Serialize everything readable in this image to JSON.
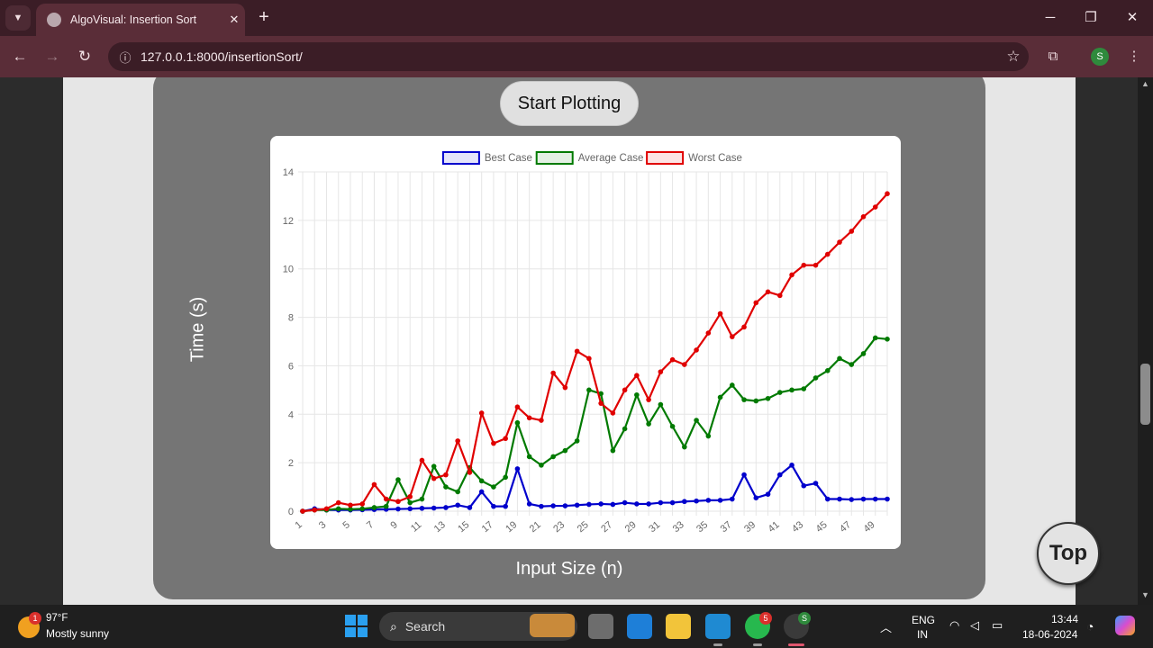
{
  "browser": {
    "tab_title": "AlgoVisual: Insertion Sort",
    "url": "127.0.0.1:8000/insertionSort/",
    "profile_initial": "S"
  },
  "page": {
    "start_button": "Start Plotting",
    "y_axis_title": "Time (s)",
    "x_axis_title": "Input Size (n)",
    "top_button": "Top"
  },
  "chart_data": {
    "type": "line",
    "x": [
      1,
      2,
      3,
      4,
      5,
      6,
      7,
      8,
      9,
      10,
      11,
      12,
      13,
      14,
      15,
      16,
      17,
      18,
      19,
      20,
      21,
      22,
      23,
      24,
      25,
      26,
      27,
      28,
      29,
      30,
      31,
      32,
      33,
      34,
      35,
      36,
      37,
      38,
      39,
      40,
      41,
      42,
      43,
      44,
      45,
      46,
      47,
      48,
      49,
      50
    ],
    "x_tick_labels": [
      "1",
      "3",
      "5",
      "7",
      "9",
      "11",
      "13",
      "15",
      "17",
      "19",
      "21",
      "23",
      "25",
      "27",
      "29",
      "31",
      "33",
      "35",
      "37",
      "39",
      "41",
      "43",
      "45",
      "47",
      "49"
    ],
    "y_ticks": [
      0,
      2,
      4,
      6,
      8,
      10,
      12,
      14
    ],
    "ylim": [
      0,
      14
    ],
    "grid": true,
    "legend_position": "top",
    "series": [
      {
        "name": "Best Case",
        "color": "#0000cc",
        "values": [
          0,
          0.1,
          0.05,
          0.05,
          0.05,
          0.06,
          0.07,
          0.08,
          0.09,
          0.1,
          0.12,
          0.13,
          0.15,
          0.25,
          0.15,
          0.8,
          0.2,
          0.2,
          1.75,
          0.3,
          0.2,
          0.22,
          0.22,
          0.25,
          0.28,
          0.3,
          0.28,
          0.35,
          0.3,
          0.3,
          0.35,
          0.35,
          0.4,
          0.42,
          0.45,
          0.45,
          0.5,
          1.5,
          0.55,
          0.7,
          1.5,
          1.9,
          1.05,
          1.15,
          0.5,
          0.5,
          0.48,
          0.5,
          0.5,
          0.5
        ]
      },
      {
        "name": "Average Case",
        "color": "#007a00",
        "values": [
          0,
          0.05,
          0.05,
          0.1,
          0.08,
          0.1,
          0.15,
          0.2,
          1.3,
          0.35,
          0.5,
          1.85,
          1.0,
          0.8,
          1.8,
          1.25,
          1.0,
          1.4,
          3.65,
          2.25,
          1.9,
          2.25,
          2.5,
          2.9,
          5.0,
          4.85,
          2.5,
          3.4,
          4.8,
          3.6,
          4.4,
          3.5,
          2.65,
          3.75,
          3.1,
          4.7,
          5.2,
          4.6,
          4.55,
          4.65,
          4.9,
          5.0,
          5.05,
          5.5,
          5.8,
          6.3,
          6.05,
          6.5,
          7.15,
          7.1
        ]
      },
      {
        "name": "Worst Case",
        "color": "#e00000",
        "values": [
          0,
          0.05,
          0.1,
          0.35,
          0.25,
          0.3,
          1.1,
          0.5,
          0.4,
          0.6,
          2.1,
          1.35,
          1.5,
          2.9,
          1.6,
          4.05,
          2.8,
          3.0,
          4.3,
          3.85,
          3.75,
          5.7,
          5.1,
          6.6,
          6.3,
          4.45,
          4.05,
          5.0,
          5.6,
          4.6,
          5.75,
          6.25,
          6.05,
          6.65,
          7.35,
          8.15,
          7.2,
          7.6,
          8.6,
          9.05,
          8.9,
          9.75,
          10.15,
          10.15,
          10.6,
          11.1,
          11.55,
          12.15,
          12.55,
          13.1
        ]
      }
    ]
  },
  "taskbar": {
    "weather_badge": "1",
    "weather_temp": "97°F",
    "weather_desc": "Mostly sunny",
    "search_placeholder": "Search",
    "whatsapp_badge": "5",
    "chrome_badge": "S",
    "lang_line1": "ENG",
    "lang_line2": "IN",
    "time": "13:44",
    "date": "18-06-2024"
  },
  "icons": {
    "tab_list": "chevron-down-icon",
    "back": "arrow-left-icon",
    "forward": "arrow-right-icon",
    "reload": "reload-icon",
    "site_info": "info-icon",
    "bookmark": "star-icon",
    "extensions": "puzzle-icon",
    "menu": "kebab-menu-icon"
  }
}
